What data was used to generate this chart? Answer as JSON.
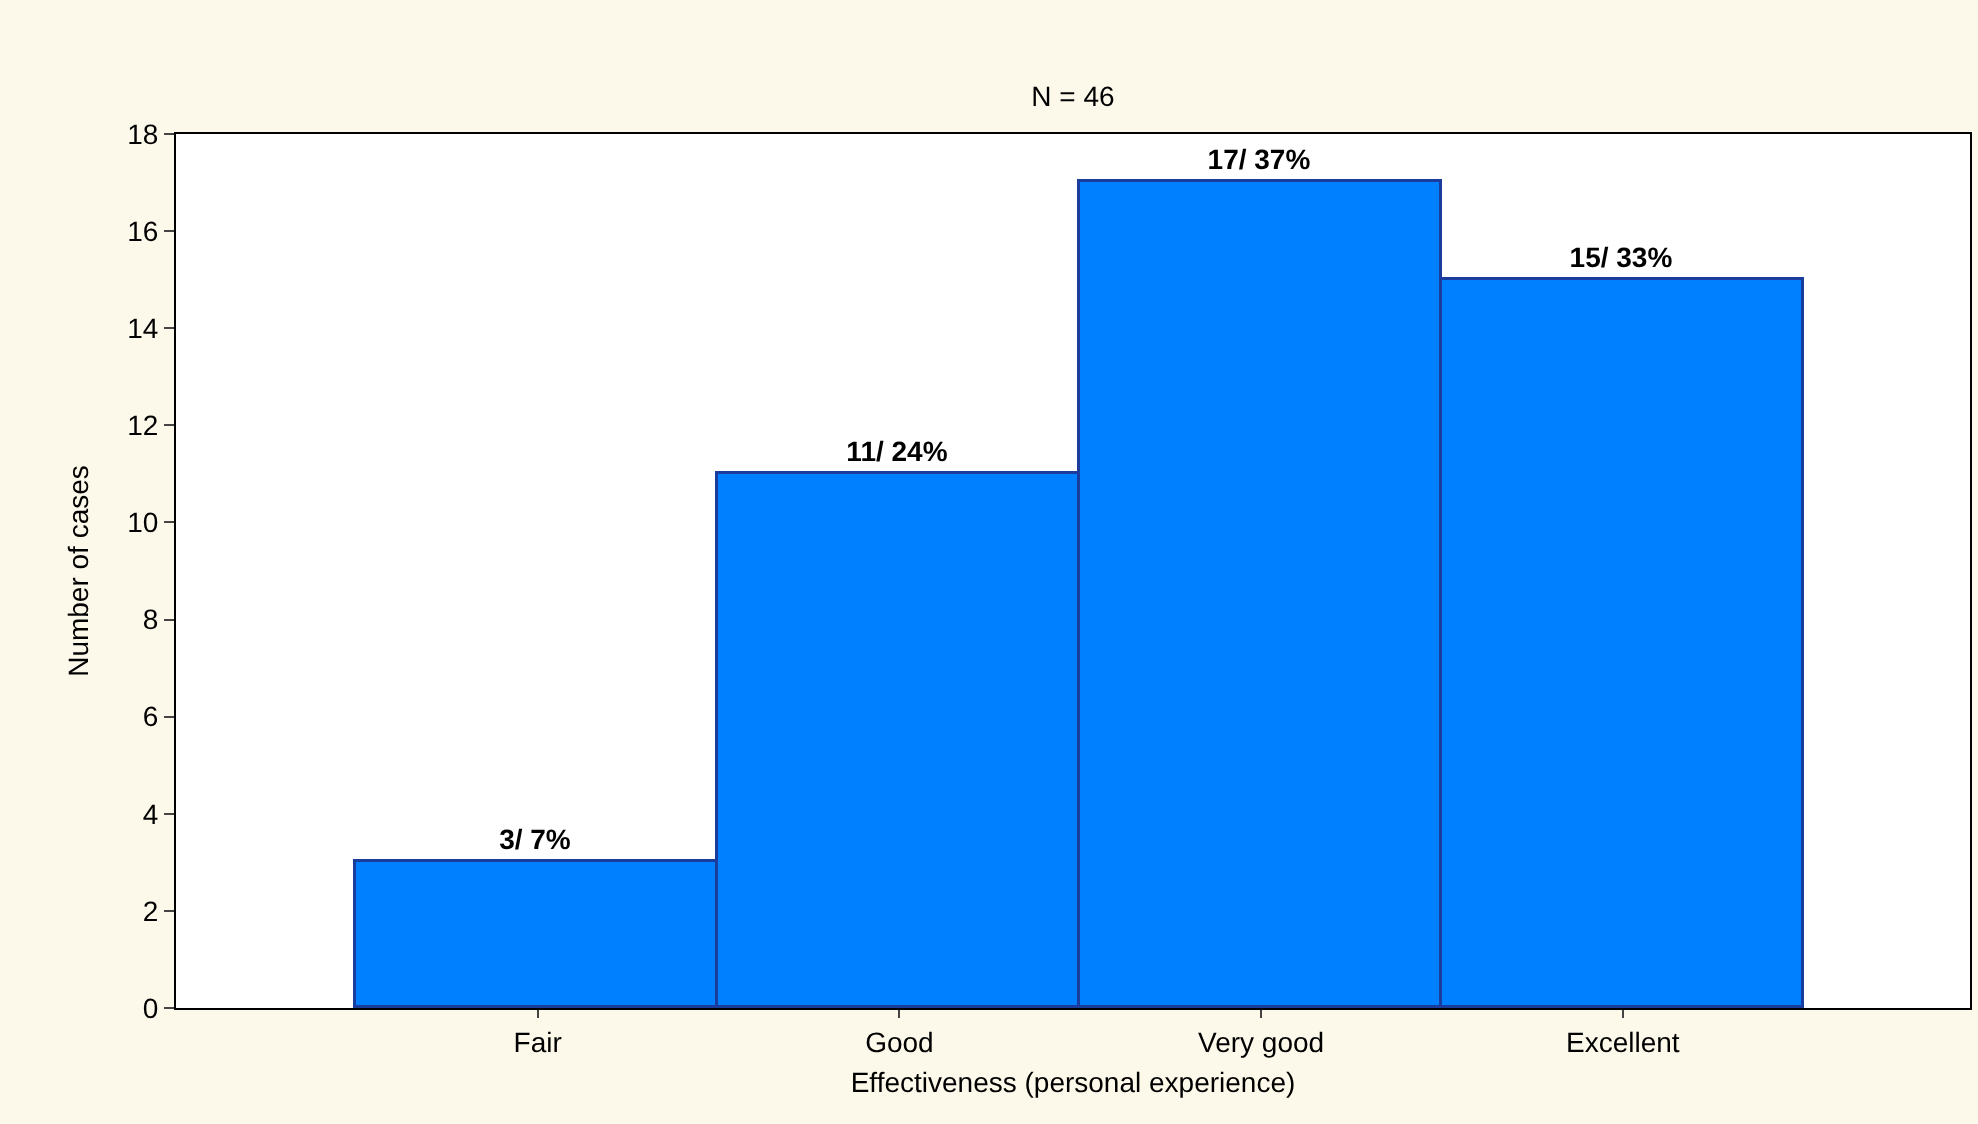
{
  "chart_data": {
    "type": "bar",
    "title": "N = 46",
    "xlabel": "Effectiveness (personal experience)",
    "ylabel": "Number of cases",
    "categories": [
      "Fair",
      "Good",
      "Very good",
      "Excellent"
    ],
    "values": [
      3,
      11,
      17,
      15
    ],
    "value_labels": [
      "3/ 7%",
      "11/ 24%",
      "17/ 37%",
      "15/ 33%"
    ],
    "color": "#0080ff",
    "ylim": [
      0,
      18
    ],
    "yticks": [
      0,
      2,
      4,
      6,
      8,
      10,
      12,
      14,
      16,
      18
    ],
    "grid": false
  }
}
